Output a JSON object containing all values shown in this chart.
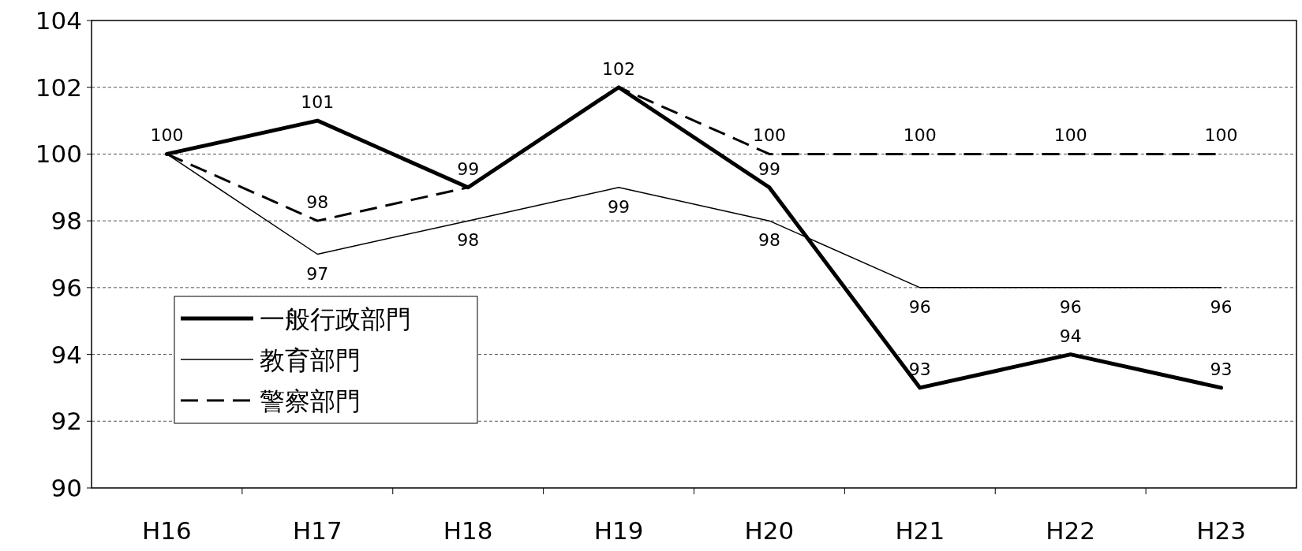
{
  "chart_data": {
    "type": "line",
    "categories": [
      "H16",
      "H17",
      "H18",
      "H19",
      "H20",
      "H21",
      "H22",
      "H23"
    ],
    "ylim": [
      90,
      104
    ],
    "yticks": [
      90,
      92,
      94,
      96,
      98,
      100,
      102,
      104
    ],
    "grid": "y",
    "legend": "bottom left",
    "series": [
      {
        "name": "一般行政部門",
        "color": "#000000",
        "line_style": "solid",
        "values": [
          100,
          101,
          99,
          102,
          99,
          93,
          94,
          93
        ],
        "value_labels": [
          "100",
          "101",
          "99",
          "102",
          "99",
          "93",
          "94",
          "93"
        ]
      },
      {
        "name": "教育部門",
        "color": "#000000",
        "line_style": "solid",
        "values": [
          100,
          97,
          98,
          99,
          98,
          96,
          96,
          96
        ],
        "value_labels": [
          null,
          "97",
          "98",
          "99",
          "98",
          "96",
          "96",
          "96"
        ]
      },
      {
        "name": "警察部門",
        "color": "#000000",
        "line_style": "dashed",
        "values": [
          100,
          98,
          99,
          102,
          100,
          100,
          100,
          100
        ],
        "value_labels": [
          null,
          "98",
          null,
          null,
          "100",
          "100",
          "100",
          "100"
        ]
      }
    ]
  }
}
